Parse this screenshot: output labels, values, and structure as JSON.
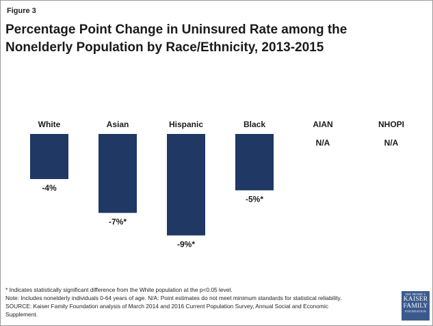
{
  "figure_label": "Figure 3",
  "title_line1": "Percentage Point Change in Uninsured Rate among the",
  "title_line2": "Nonelderly Population by Race/Ethnicity, 2013-2015",
  "chart_data": {
    "type": "bar",
    "categories": [
      "White",
      "Asian",
      "Hispanic",
      "Black",
      "AIAN",
      "NHOPI"
    ],
    "values": [
      -4,
      -7,
      -9,
      -5,
      null,
      null
    ],
    "data_labels": [
      "-4%",
      "-7%*",
      "-9%*",
      "-5%*",
      "N/A",
      "N/A"
    ],
    "bar_color": "#1f3864",
    "ylim": [
      -10,
      0
    ],
    "grid": false,
    "legend": "none",
    "title": "",
    "xlabel": "",
    "ylabel": ""
  },
  "footnotes": {
    "significance": "* Indicates statistically significant difference from the White population at the p<0.05 level.",
    "note": "Note: Includes nonelderly individuals 0-64 years of age. N/A: Point estimates do not meet minimum standards for statistical reliability.",
    "source_line1": "SOURCE: Kaiser Family Foundation analysis of March 2014 and 2016 Current Population Survey, Annual Social and Economic",
    "source_line2": "Supplement."
  },
  "logo": {
    "top": "THE HENRY J.",
    "line1": "KAISER",
    "line2": "FAMILY",
    "bottom": "FOUNDATION"
  }
}
